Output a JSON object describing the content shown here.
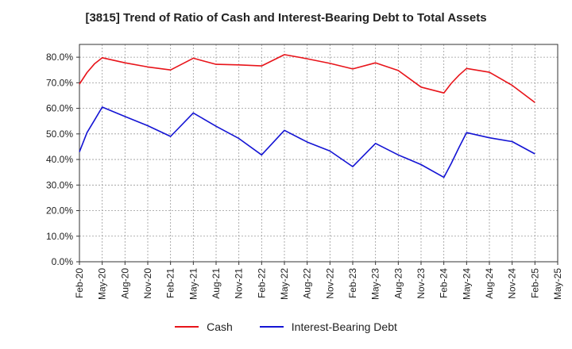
{
  "chart_data": {
    "type": "line",
    "title": "[3815]  Trend of Ratio of Cash and Interest-Bearing Debt to Total Assets",
    "xlabel": "",
    "ylabel": "",
    "ylim": [
      0,
      85
    ],
    "yticks": [
      "0.0%",
      "10.0%",
      "20.0%",
      "30.0%",
      "40.0%",
      "50.0%",
      "60.0%",
      "70.0%",
      "80.0%"
    ],
    "yticks_values": [
      0,
      10,
      20,
      30,
      40,
      50,
      60,
      70,
      80
    ],
    "x_labels": [
      "Feb-20",
      "May-20",
      "Aug-20",
      "Nov-20",
      "Feb-21",
      "May-21",
      "Aug-21",
      "Nov-21",
      "Feb-22",
      "May-22",
      "Aug-22",
      "Nov-22",
      "Feb-23",
      "May-23",
      "Aug-23",
      "Nov-23",
      "Feb-24",
      "May-24",
      "Aug-24",
      "Nov-24",
      "Feb-25",
      "May-25"
    ],
    "x_point_index": [
      0,
      0.33,
      0.67,
      1,
      2,
      3,
      4,
      5,
      6,
      7,
      8,
      9,
      10,
      11,
      12,
      13,
      14,
      15,
      16,
      16.33,
      16.67,
      17,
      18,
      19,
      20
    ],
    "series": [
      {
        "name": "Cash",
        "color": "#e8141a",
        "values": [
          69.5,
          74.0,
          77.5,
          79.8,
          77.8,
          76.2,
          75.0,
          79.6,
          77.2,
          77.0,
          76.6,
          81.0,
          79.4,
          77.6,
          75.4,
          77.8,
          74.8,
          68.3,
          66.0,
          69.8,
          73.0,
          75.6,
          74.1,
          69.0,
          62.3
        ]
      },
      {
        "name": "Interest-Bearing Debt",
        "color": "#1414d4",
        "values": [
          43.0,
          50.5,
          55.5,
          60.5,
          56.8,
          53.2,
          49.0,
          58.2,
          53.0,
          48.2,
          41.8,
          51.4,
          46.8,
          43.3,
          37.2,
          46.3,
          41.8,
          38.0,
          33.0,
          38.5,
          44.8,
          50.5,
          48.5,
          47.0,
          42.2
        ]
      }
    ],
    "legend": [
      "Cash",
      "Interest-Bearing Debt"
    ],
    "legend_position": "bottom",
    "grid": true
  }
}
